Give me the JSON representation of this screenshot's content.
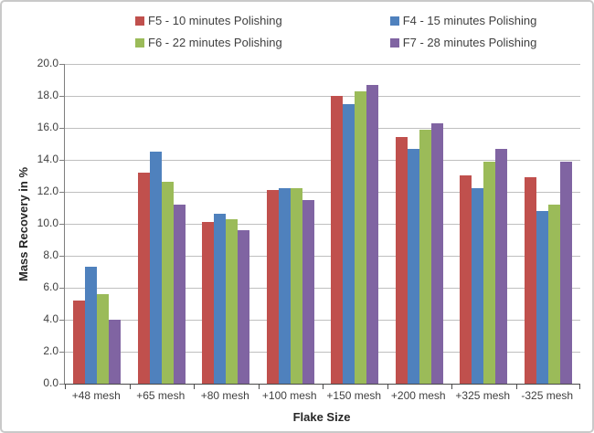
{
  "chart_data": {
    "type": "bar",
    "title": "",
    "xlabel": "Flake Size",
    "ylabel": "Mass Recovery in %",
    "ylim": [
      0,
      20
    ],
    "ytick_step": 2,
    "ytick_labels": [
      "0.0",
      "2.0",
      "4.0",
      "6.0",
      "8.0",
      "10.0",
      "12.0",
      "14.0",
      "16.0",
      "18.0",
      "20.0"
    ],
    "grid": true,
    "legend_position": "top",
    "categories": [
      "+48 mesh",
      "+65 mesh",
      "+80 mesh",
      "+100 mesh",
      "+150 mesh",
      "+200 mesh",
      "+325 mesh",
      "-325 mesh"
    ],
    "series": [
      {
        "name": "F5 - 10 minutes Polishing",
        "color": "#C0504D",
        "values": [
          5.2,
          13.2,
          10.1,
          12.1,
          18.0,
          15.4,
          13.0,
          12.9
        ]
      },
      {
        "name": "F4 - 15 minutes Polishing",
        "color": "#4F81BD",
        "values": [
          7.3,
          14.5,
          10.6,
          12.2,
          17.5,
          14.7,
          12.2,
          10.8
        ]
      },
      {
        "name": "F6 - 22 minutes Polishing",
        "color": "#9BBB59",
        "values": [
          5.6,
          12.6,
          10.3,
          12.2,
          18.3,
          15.9,
          13.9,
          11.2
        ]
      },
      {
        "name": "F7 - 28 minutes Polishing",
        "color": "#8064A2",
        "values": [
          4.0,
          11.2,
          9.6,
          11.5,
          18.7,
          16.3,
          14.7,
          13.9
        ]
      }
    ],
    "colors": {
      "grid": "#BFBFBF",
      "axis": "#7F7F7F",
      "text": "#3F3F3F"
    }
  }
}
